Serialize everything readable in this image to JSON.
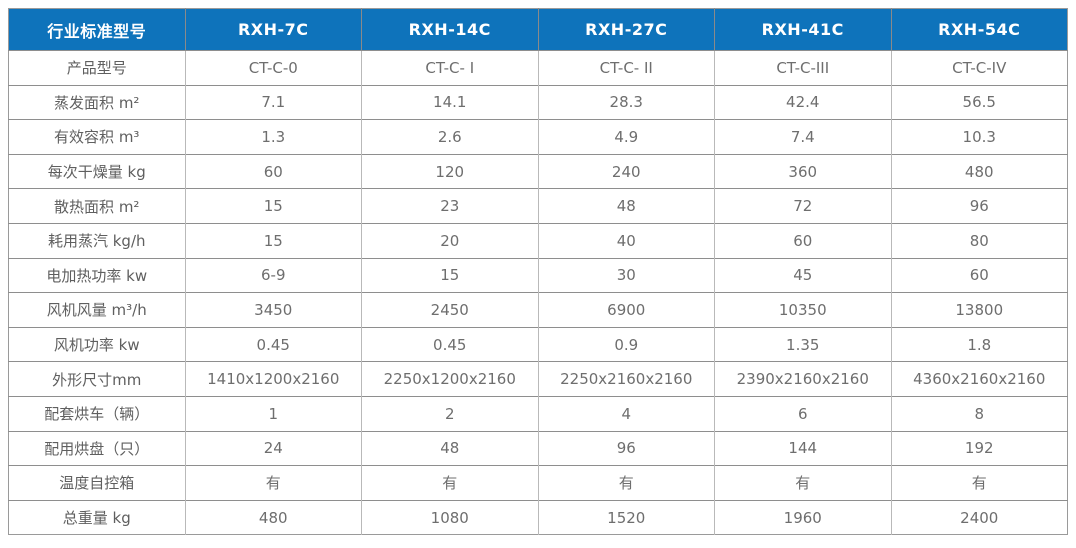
{
  "table": {
    "header": {
      "corner_label": "行业标准型号",
      "models": [
        "RXH-7C",
        "RXH-14C",
        "RXH-27C",
        "RXH-41C",
        "RXH-54C"
      ]
    },
    "rows": [
      {
        "label": "产品型号",
        "values": [
          "CT-C-0",
          "CT-C- I",
          "CT-C- II",
          "CT-C-III",
          "CT-C-IV"
        ]
      },
      {
        "label": "蒸发面积 m²",
        "values": [
          "7.1",
          "14.1",
          "28.3",
          "42.4",
          "56.5"
        ]
      },
      {
        "label": "有效容积 m³",
        "values": [
          "1.3",
          "2.6",
          "4.9",
          "7.4",
          "10.3"
        ]
      },
      {
        "label": "每次干燥量 kg",
        "values": [
          "60",
          "120",
          "240",
          "360",
          "480"
        ]
      },
      {
        "label": "散热面积 m²",
        "values": [
          "15",
          "23",
          "48",
          "72",
          "96"
        ]
      },
      {
        "label": "耗用蒸汽 kg/h",
        "values": [
          "15",
          "20",
          "40",
          "60",
          "80"
        ]
      },
      {
        "label": "电加热功率 kw",
        "values": [
          "6-9",
          "15",
          "30",
          "45",
          "60"
        ]
      },
      {
        "label": "风机风量 m³/h",
        "values": [
          "3450",
          "2450",
          "6900",
          "10350",
          "13800"
        ]
      },
      {
        "label": "风机功率 kw",
        "values": [
          "0.45",
          "0.45",
          "0.9",
          "1.35",
          "1.8"
        ]
      },
      {
        "label": "外形尺寸mm",
        "values": [
          "1410x1200x2160",
          "2250x1200x2160",
          "2250x2160x2160",
          "2390x2160x2160",
          "4360x2160x2160"
        ]
      },
      {
        "label": "配套烘车（辆）",
        "values": [
          "1",
          "2",
          "4",
          "6",
          "8"
        ]
      },
      {
        "label": "配用烘盘（只）",
        "values": [
          "24",
          "48",
          "96",
          "144",
          "192"
        ]
      },
      {
        "label": "温度自控箱",
        "values": [
          "有",
          "有",
          "有",
          "有",
          "有"
        ]
      },
      {
        "label": "总重量 kg",
        "values": [
          "480",
          "1080",
          "1520",
          "1960",
          "2400"
        ]
      }
    ],
    "colors": {
      "header_bg": "#0e73bb",
      "header_text": "#ffffff",
      "header_divider": "#8a8a8a",
      "body_text": "#6e6e6e",
      "label_text": "#5f5f5f",
      "border_horizontal": "#8e8e8e",
      "border_vertical": "#b9b9b9",
      "outer_border": "#9a9a9a"
    }
  }
}
